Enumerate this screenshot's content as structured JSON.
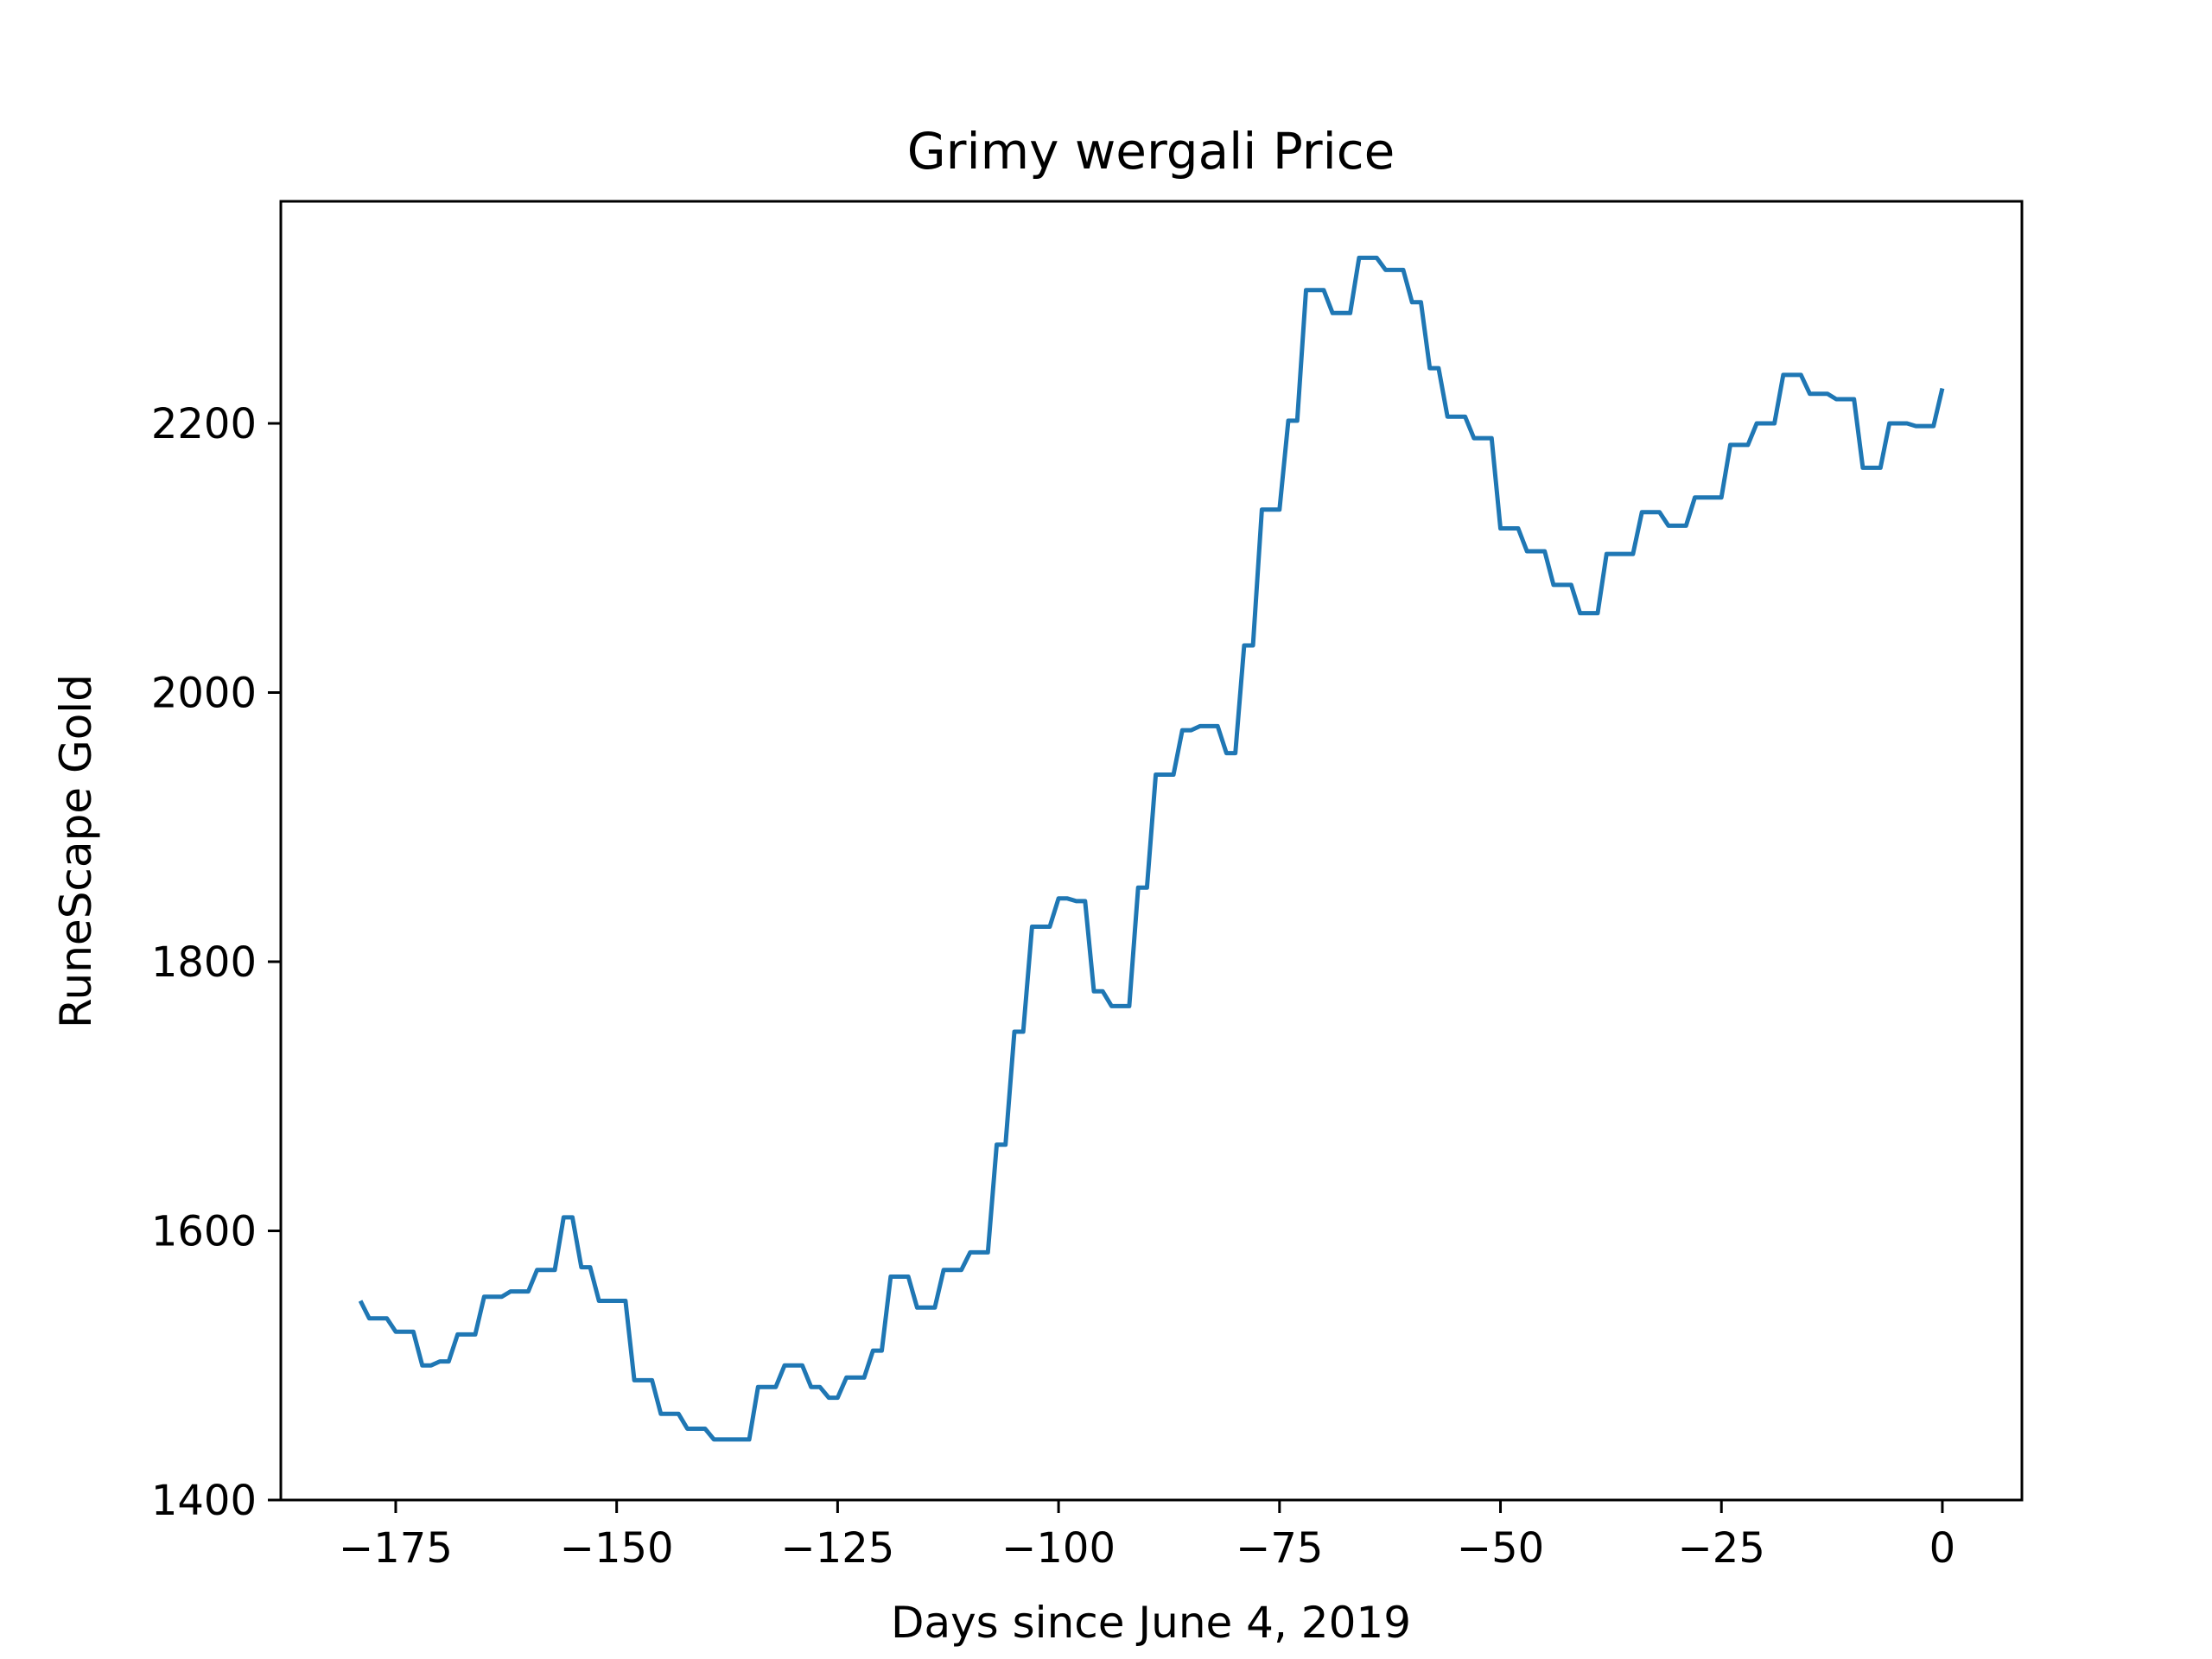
{
  "colors": {
    "background": "#ffffff",
    "series": "#1f77b4",
    "axes": "#000000"
  },
  "chart_data": {
    "type": "line",
    "title": "Grimy wergali Price",
    "xlabel": "Days since June 4, 2019",
    "ylabel": "RuneScape Gold",
    "xlim": [
      -188,
      9
    ],
    "ylim": [
      1400,
      2365
    ],
    "grid": false,
    "xticks": [
      -175,
      -150,
      -125,
      -100,
      -75,
      -50,
      -25,
      0
    ],
    "xtick_labels": [
      "−175",
      "−150",
      "−125",
      "−100",
      "−75",
      "−50",
      "−25",
      "0"
    ],
    "yticks": [
      1400,
      1600,
      1800,
      2000,
      2200
    ],
    "ytick_labels": [
      "1400",
      "1600",
      "1800",
      "2000",
      "2200"
    ],
    "series": [
      {
        "x": [
          -179,
          -178,
          -177,
          -176,
          -175,
          -174,
          -173,
          -172,
          -171,
          -170,
          -169,
          -168,
          -167,
          -166,
          -165,
          -164,
          -163,
          -162,
          -161,
          -160,
          -159,
          -158,
          -157,
          -156,
          -155,
          -154,
          -153,
          -152,
          -151,
          -150,
          -149,
          -148,
          -147,
          -146,
          -145,
          -144,
          -143,
          -142,
          -141,
          -140,
          -139,
          -138,
          -137,
          -136,
          -135,
          -134,
          -133,
          -132,
          -131,
          -130,
          -129,
          -128,
          -127,
          -126,
          -125,
          -124,
          -123,
          -122,
          -121,
          -120,
          -119,
          -118,
          -117,
          -116,
          -115,
          -114,
          -113,
          -112,
          -111,
          -110,
          -109,
          -108,
          -107,
          -106,
          -105,
          -104,
          -103,
          -102,
          -101,
          -100,
          -99,
          -98,
          -97,
          -96,
          -95,
          -94,
          -93,
          -92,
          -91,
          -90,
          -89,
          -88,
          -87,
          -86,
          -85,
          -84,
          -83,
          -82,
          -81,
          -80,
          -79,
          -78,
          -77,
          -76,
          -75,
          -74,
          -73,
          -72,
          -71,
          -70,
          -69,
          -68,
          -67,
          -66,
          -65,
          -64,
          -63,
          -62,
          -61,
          -60,
          -59,
          -58,
          -57,
          -56,
          -55,
          -54,
          -53,
          -52,
          -51,
          -50,
          -49,
          -48,
          -47,
          -46,
          -45,
          -44,
          -43,
          -42,
          -41,
          -40,
          -39,
          -38,
          -37,
          -36,
          -35,
          -34,
          -33,
          -32,
          -31,
          -30,
          -29,
          -28,
          -27,
          -26,
          -25,
          -24,
          -23,
          -22,
          -21,
          -20,
          -19,
          -18,
          -17,
          -16,
          -15,
          -14,
          -13,
          -12,
          -11,
          -10,
          -9,
          -8,
          -7,
          -6,
          -5,
          -4,
          -3,
          -2,
          -1,
          0
        ],
        "values": [
          1548,
          1535,
          1535,
          1535,
          1525,
          1525,
          1525,
          1500,
          1500,
          1503,
          1503,
          1523,
          1523,
          1523,
          1551,
          1551,
          1551,
          1555,
          1555,
          1555,
          1571,
          1571,
          1571,
          1610,
          1610,
          1573,
          1573,
          1548,
          1548,
          1548,
          1548,
          1489,
          1489,
          1489,
          1464,
          1464,
          1464,
          1453,
          1453,
          1453,
          1445,
          1445,
          1445,
          1445,
          1445,
          1484,
          1484,
          1484,
          1500,
          1500,
          1500,
          1484,
          1484,
          1476,
          1476,
          1491,
          1491,
          1491,
          1511,
          1511,
          1566,
          1566,
          1566,
          1543,
          1543,
          1543,
          1571,
          1571,
          1571,
          1584,
          1584,
          1584,
          1664,
          1664,
          1748,
          1748,
          1826,
          1826,
          1826,
          1847,
          1847,
          1845,
          1845,
          1778,
          1778,
          1767,
          1767,
          1767,
          1855,
          1855,
          1939,
          1939,
          1939,
          1972,
          1972,
          1975,
          1975,
          1975,
          1955,
          1955,
          2035,
          2035,
          2136,
          2136,
          2136,
          2202,
          2202,
          2299,
          2299,
          2299,
          2282,
          2282,
          2282,
          2323,
          2323,
          2323,
          2314,
          2314,
          2314,
          2290,
          2290,
          2241,
          2241,
          2205,
          2205,
          2205,
          2189,
          2189,
          2189,
          2122,
          2122,
          2122,
          2105,
          2105,
          2105,
          2080,
          2080,
          2080,
          2059,
          2059,
          2059,
          2103,
          2103,
          2103,
          2103,
          2134,
          2134,
          2134,
          2124,
          2124,
          2124,
          2145,
          2145,
          2145,
          2145,
          2184,
          2184,
          2184,
          2200,
          2200,
          2200,
          2236,
          2236,
          2236,
          2222,
          2222,
          2222,
          2218,
          2218,
          2218,
          2167,
          2167,
          2167,
          2200,
          2200,
          2200,
          2198,
          2198,
          2198,
          2226
        ]
      }
    ]
  }
}
